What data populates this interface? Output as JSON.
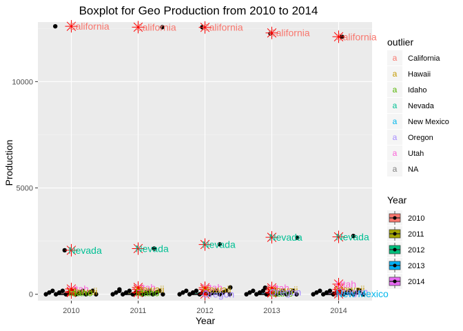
{
  "chart_data": {
    "type": "boxplot",
    "title": "Boxplot for Geo Production from 2010 to 2014",
    "xlabel": "Year",
    "ylabel": "Production",
    "ylim": [
      -300,
      12800
    ],
    "y_ticks": [
      0,
      5000,
      10000
    ],
    "y_tick_labels": [
      "0",
      "5000",
      "10000"
    ],
    "categories": [
      "2010",
      "2011",
      "2012",
      "2013",
      "2014"
    ],
    "grid": true,
    "legend_placement": "right",
    "series": [
      {
        "name": "2010",
        "color": "#F8766D",
        "median": 0,
        "q1": 0,
        "q3": 15
      },
      {
        "name": "2011",
        "color": "#A3A500",
        "median": 0,
        "q1": 0,
        "q3": 15
      },
      {
        "name": "2012",
        "color": "#00BF7D",
        "median": 0,
        "q1": 0,
        "q3": 15
      },
      {
        "name": "2013",
        "color": "#00B0F6",
        "median": 0,
        "q1": 0,
        "q3": 15
      },
      {
        "name": "2014",
        "color": "#E76BF3",
        "median": 0,
        "q1": 0,
        "q3": 15
      }
    ],
    "outlier_colors": {
      "California": "#F8766D",
      "Hawaii": "#C49A00",
      "Idaho": "#53B400",
      "Nevada": "#00C094",
      "New Mexico": "#00B6EB",
      "Oregon": "#A58AFF",
      "Utah": "#FB61D7",
      "NA": "#7F7F7F"
    },
    "outliers": [
      {
        "year": "2010",
        "state": "California",
        "value": 12600
      },
      {
        "year": "2010",
        "state": "Nevada",
        "value": 2070
      },
      {
        "year": "2010",
        "state": "Utah",
        "value": 250
      },
      {
        "year": "2010",
        "state": "Hawaii",
        "value": 140
      },
      {
        "year": "2010",
        "state": "Idaho",
        "value": 80
      },
      {
        "year": "2011",
        "state": "California",
        "value": 12560
      },
      {
        "year": "2011",
        "state": "Nevada",
        "value": 2150
      },
      {
        "year": "2011",
        "state": "Utah",
        "value": 320
      },
      {
        "year": "2011",
        "state": "Hawaii",
        "value": 230
      },
      {
        "year": "2011",
        "state": "Idaho",
        "value": 80
      },
      {
        "year": "2012",
        "state": "California",
        "value": 12550
      },
      {
        "year": "2012",
        "state": "Nevada",
        "value": 2340
      },
      {
        "year": "2012",
        "state": "Utah",
        "value": 310
      },
      {
        "year": "2012",
        "state": "Hawaii",
        "value": 230
      },
      {
        "year": "2012",
        "state": "Oregon",
        "value": 10
      },
      {
        "year": "2013",
        "state": "California",
        "value": 12290
      },
      {
        "year": "2013",
        "state": "Nevada",
        "value": 2680
      },
      {
        "year": "2013",
        "state": "Utah",
        "value": 300
      },
      {
        "year": "2013",
        "state": "Hawaii",
        "value": 200
      },
      {
        "year": "2013",
        "state": "Idaho",
        "value": 60
      },
      {
        "year": "2013",
        "state": "Oregon",
        "value": 100
      },
      {
        "year": "2014",
        "state": "California",
        "value": 12110
      },
      {
        "year": "2014",
        "state": "Nevada",
        "value": 2700
      },
      {
        "year": "2014",
        "state": "Utah",
        "value": 480
      },
      {
        "year": "2014",
        "state": "Hawaii",
        "value": 230
      },
      {
        "year": "2014",
        "state": "Oregon",
        "value": 120
      },
      {
        "year": "2014",
        "state": "New Mexico",
        "value": 20
      }
    ],
    "jitter_points": [
      {
        "year": "2010",
        "value": 12600,
        "offset": -0.24
      },
      {
        "year": "2010",
        "value": 2070,
        "offset": -0.1
      },
      {
        "year": "2011",
        "value": 12560,
        "offset": 0.36
      },
      {
        "year": "2011",
        "value": 2150,
        "offset": 0.24
      },
      {
        "year": "2011",
        "value": 230,
        "offset": -0.28
      },
      {
        "year": "2012",
        "value": 12560,
        "offset": -0.04
      },
      {
        "year": "2012",
        "value": 2350,
        "offset": 0.22
      },
      {
        "year": "2012",
        "value": 320,
        "offset": 0.38
      },
      {
        "year": "2013",
        "value": 12260,
        "offset": -0.02
      },
      {
        "year": "2013",
        "value": 2660,
        "offset": 0.38
      },
      {
        "year": "2013",
        "value": 310,
        "offset": -0.1
      },
      {
        "year": "2014",
        "value": 12110,
        "offset": 0.05
      },
      {
        "year": "2014",
        "value": 2740,
        "offset": 0.22
      },
      {
        "year": "2014",
        "value": 200,
        "offset": 0.3
      }
    ]
  },
  "legend_outlier": {
    "title": "outlier",
    "key_glyph": "a",
    "items": [
      {
        "label": "California",
        "color": "#F8766D"
      },
      {
        "label": "Hawaii",
        "color": "#C49A00"
      },
      {
        "label": "Idaho",
        "color": "#53B400"
      },
      {
        "label": "Nevada",
        "color": "#00C094"
      },
      {
        "label": "New Mexico",
        "color": "#00B6EB"
      },
      {
        "label": "Oregon",
        "color": "#A58AFF"
      },
      {
        "label": "Utah",
        "color": "#FB61D7"
      },
      {
        "label": "NA",
        "color": "#7F7F7F"
      }
    ]
  },
  "legend_year": {
    "title": "Year",
    "items": [
      {
        "label": "2010",
        "color": "#F8766D"
      },
      {
        "label": "2011",
        "color": "#A3A500"
      },
      {
        "label": "2012",
        "color": "#00BF7D"
      },
      {
        "label": "2013",
        "color": "#00B0F6"
      },
      {
        "label": "2014",
        "color": "#E76BF3"
      }
    ]
  },
  "colors": {
    "panel_background": "#EBEBEB",
    "grid_major": "#FFFFFF",
    "grid_minor": "#F5F5F5",
    "outlier_star": "#FF0000",
    "point": "#000000"
  }
}
